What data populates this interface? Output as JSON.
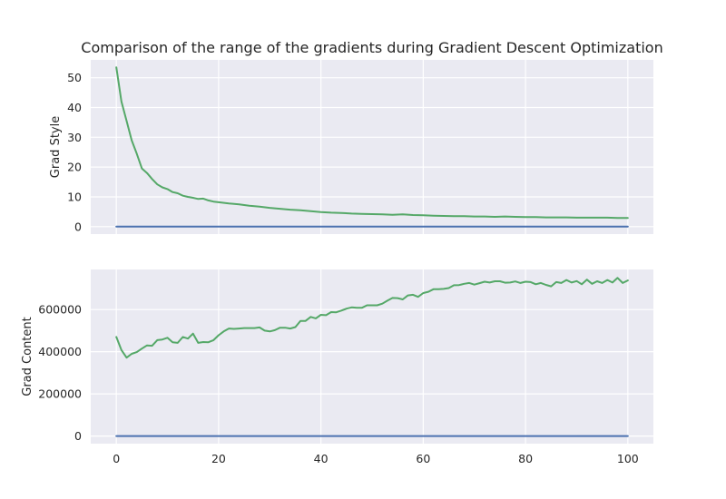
{
  "chart_data": [
    {
      "type": "line",
      "title": "Comparison of the range of the gradients during Gradient Descent Optimization",
      "ylabel": "Grad Style",
      "xlabel": "",
      "xlim": [
        -5,
        105
      ],
      "ylim": [
        -2.5,
        56
      ],
      "xticks": [],
      "yticks": [
        0,
        10,
        20,
        30,
        40,
        50
      ],
      "ytick_labels": [
        "0",
        "10",
        "20",
        "30",
        "40",
        "50"
      ],
      "grid": true,
      "series": [
        {
          "color": "#55a868",
          "x": [
            0,
            1,
            2,
            3,
            4,
            5,
            6,
            7,
            8,
            9,
            10,
            11,
            12,
            13,
            14,
            15,
            16,
            17,
            18,
            19,
            20,
            22,
            24,
            26,
            28,
            30,
            32,
            34,
            36,
            38,
            40,
            42,
            44,
            46,
            48,
            50,
            52,
            54,
            56,
            58,
            60,
            62,
            64,
            66,
            68,
            70,
            72,
            74,
            76,
            78,
            80,
            82,
            84,
            86,
            88,
            90,
            92,
            94,
            96,
            98,
            100
          ],
          "y": [
            53.5,
            42,
            35.5,
            29,
            24.5,
            19.5,
            18,
            16,
            14.2,
            13.2,
            12.6,
            11.6,
            11.2,
            10.4,
            10,
            9.7,
            9.3,
            9.4,
            8.8,
            8.4,
            8.2,
            7.8,
            7.5,
            7,
            6.7,
            6.3,
            6,
            5.7,
            5.5,
            5.2,
            4.9,
            4.7,
            4.6,
            4.4,
            4.3,
            4.2,
            4.1,
            4,
            4.1,
            3.9,
            3.8,
            3.7,
            3.6,
            3.5,
            3.5,
            3.4,
            3.4,
            3.3,
            3.4,
            3.3,
            3.2,
            3.2,
            3.1,
            3.1,
            3.1,
            3,
            3,
            3,
            3,
            2.9,
            2.9
          ]
        },
        {
          "color": "#4c72b0",
          "x": [
            0,
            100
          ],
          "y": [
            0,
            0
          ]
        }
      ]
    },
    {
      "type": "line",
      "title": "",
      "ylabel": "Grad Content",
      "xlabel": "",
      "xlim": [
        -5,
        105
      ],
      "ylim": [
        -36000,
        790000
      ],
      "xticks": [
        0,
        20,
        40,
        60,
        80,
        100
      ],
      "xtick_labels": [
        "0",
        "20",
        "40",
        "60",
        "80",
        "100"
      ],
      "yticks": [
        0,
        200000,
        400000,
        600000
      ],
      "ytick_labels": [
        "0",
        "200000",
        "400000",
        "600000"
      ],
      "grid": true,
      "series": [
        {
          "color": "#55a868",
          "x": [
            0,
            1,
            2,
            3,
            4,
            5,
            6,
            7,
            8,
            9,
            10,
            11,
            12,
            13,
            14,
            15,
            16,
            17,
            18,
            19,
            20,
            21,
            22,
            23,
            24,
            25,
            26,
            27,
            28,
            29,
            30,
            31,
            32,
            33,
            34,
            35,
            36,
            37,
            38,
            39,
            40,
            41,
            42,
            43,
            44,
            45,
            46,
            47,
            48,
            49,
            50,
            51,
            52,
            53,
            54,
            55,
            56,
            57,
            58,
            59,
            60,
            61,
            62,
            63,
            64,
            65,
            66,
            67,
            68,
            69,
            70,
            71,
            72,
            73,
            74,
            75,
            76,
            77,
            78,
            79,
            80,
            81,
            82,
            83,
            84,
            85,
            86,
            87,
            88,
            89,
            90,
            91,
            92,
            93,
            94,
            95,
            96,
            97,
            98,
            99,
            100
          ],
          "y": [
            470000,
            408000,
            372000,
            390000,
            398000,
            415000,
            430000,
            428000,
            455000,
            458000,
            466000,
            445000,
            442000,
            470000,
            462000,
            486000,
            442000,
            446000,
            445000,
            455000,
            478000,
            496000,
            510000,
            508000,
            510000,
            512000,
            512000,
            512000,
            515000,
            500000,
            496000,
            502000,
            514000,
            514000,
            510000,
            517000,
            546000,
            546000,
            565000,
            558000,
            575000,
            573000,
            588000,
            587000,
            595000,
            604000,
            610000,
            608000,
            608000,
            620000,
            620000,
            620000,
            628000,
            642000,
            655000,
            654000,
            648000,
            667000,
            670000,
            660000,
            678000,
            684000,
            696000,
            696000,
            698000,
            702000,
            715000,
            716000,
            722000,
            726000,
            718000,
            725000,
            732000,
            728000,
            734000,
            734000,
            727000,
            728000,
            733000,
            726000,
            732000,
            730000,
            720000,
            726000,
            717000,
            710000,
            730000,
            726000,
            740000,
            728000,
            735000,
            720000,
            742000,
            722000,
            734000,
            726000,
            740000,
            728000,
            750000,
            726000,
            738000
          ]
        },
        {
          "color": "#4c72b0",
          "x": [
            0,
            100
          ],
          "y": [
            0,
            0
          ]
        }
      ]
    }
  ]
}
